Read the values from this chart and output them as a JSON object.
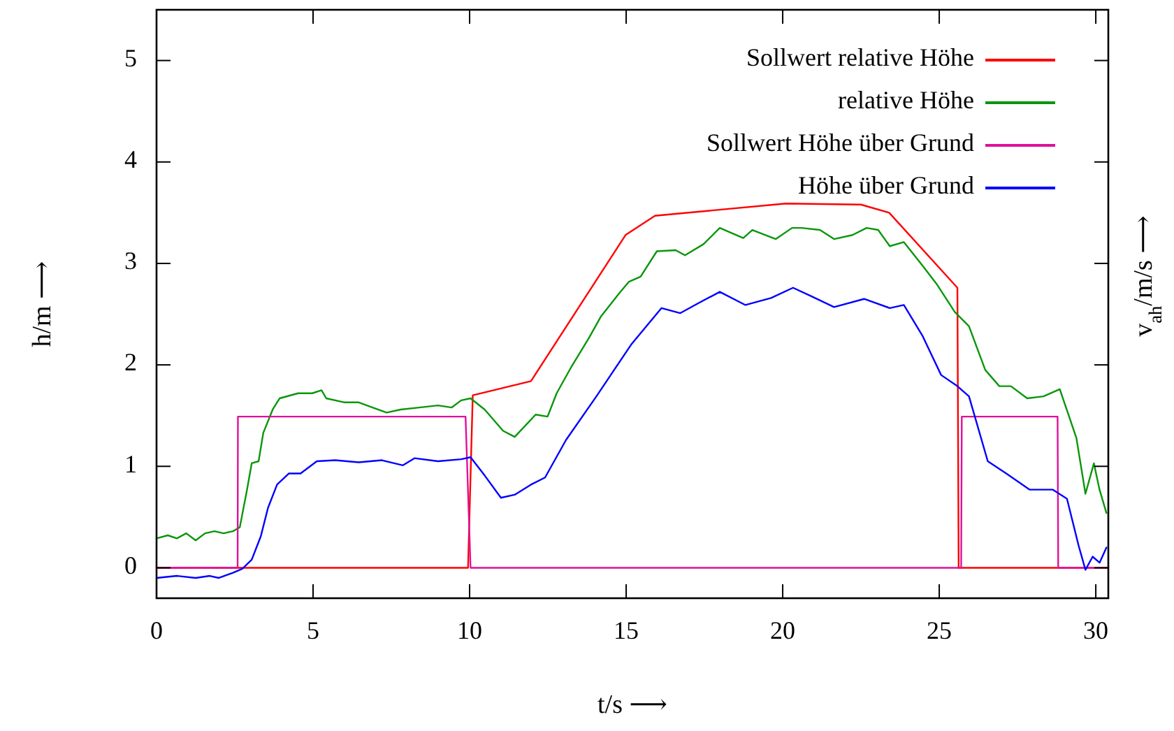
{
  "chart_data": {
    "type": "line",
    "xlabel": "t/s ⟶",
    "ylabel": "h/m ⟶",
    "y2label": "v$_{ah}$/m/s ⟶",
    "xlim": [
      0,
      30.4
    ],
    "xticks": [
      0,
      5,
      10,
      15,
      20,
      25,
      30
    ],
    "ylim": [
      -0.3,
      5.5
    ],
    "yticks": [
      0,
      1,
      2,
      3,
      4,
      5
    ],
    "grid": false,
    "legend": "top right",
    "line_style": "solid",
    "marker": "none",
    "series": [
      {
        "name": "Sollwert relative Höhe",
        "color": "#ff0000",
        "x": [
          0,
          9.95,
          10.1,
          11.96,
          14.98,
          15.92,
          20.1,
          22.5,
          23.4,
          25.58,
          25.62,
          30.4
        ],
        "values": [
          0,
          0,
          1.7,
          1.84,
          3.28,
          3.47,
          3.59,
          3.58,
          3.5,
          2.76,
          0,
          0
        ]
      },
      {
        "name": "relative Höhe",
        "color": "#0a960a",
        "x": [
          0,
          0.36,
          0.65,
          0.95,
          1.25,
          1.55,
          1.85,
          2.14,
          2.44,
          2.66,
          2.89,
          3.04,
          3.26,
          3.41,
          3.71,
          3.93,
          4.52,
          4.97,
          5.27,
          5.42,
          6.01,
          6.46,
          6.9,
          7.35,
          7.8,
          8.39,
          8.99,
          9.43,
          9.73,
          10.03,
          10.48,
          11.07,
          11.44,
          12.11,
          12.49,
          12.78,
          13.23,
          13.82,
          14.2,
          14.79,
          15.09,
          15.46,
          15.98,
          16.58,
          16.88,
          17.47,
          17.99,
          18.74,
          19.03,
          19.78,
          20.3,
          20.6,
          21.19,
          21.64,
          22.23,
          22.68,
          23.05,
          23.42,
          23.87,
          24.46,
          24.91,
          25.5,
          25.95,
          26.47,
          26.92,
          27.29,
          27.81,
          28.33,
          28.85,
          29.38,
          29.67,
          29.94,
          30.12,
          30.34
        ],
        "values": [
          0.29,
          0.32,
          0.29,
          0.34,
          0.27,
          0.34,
          0.36,
          0.34,
          0.36,
          0.4,
          0.77,
          1.03,
          1.05,
          1.33,
          1.56,
          1.67,
          1.72,
          1.72,
          1.75,
          1.67,
          1.63,
          1.63,
          1.58,
          1.53,
          1.56,
          1.58,
          1.6,
          1.58,
          1.65,
          1.67,
          1.56,
          1.35,
          1.29,
          1.51,
          1.49,
          1.72,
          1.97,
          2.27,
          2.48,
          2.71,
          2.82,
          2.87,
          3.12,
          3.13,
          3.08,
          3.19,
          3.35,
          3.25,
          3.33,
          3.24,
          3.35,
          3.35,
          3.33,
          3.24,
          3.28,
          3.35,
          3.33,
          3.17,
          3.21,
          2.98,
          2.8,
          2.52,
          2.38,
          1.95,
          1.79,
          1.79,
          1.67,
          1.69,
          1.76,
          1.28,
          0.73,
          1.03,
          0.77,
          0.54
        ]
      },
      {
        "name": "Sollwert Höhe über Grund",
        "color": "#e0109a",
        "x": [
          0,
          2.59,
          2.6,
          9.87,
          10.03,
          25.7,
          25.72,
          28.78,
          28.8,
          30.4
        ],
        "values": [
          0,
          0,
          1.49,
          1.49,
          0,
          0,
          1.49,
          1.49,
          0,
          0
        ]
      },
      {
        "name": "Höhe über Grund",
        "color": "#0000ff",
        "x": [
          0,
          0.65,
          1.25,
          1.7,
          1.99,
          2.44,
          2.74,
          3.04,
          3.33,
          3.56,
          3.85,
          4.23,
          4.6,
          5.12,
          5.71,
          6.46,
          7.2,
          7.87,
          8.24,
          8.99,
          9.73,
          10.03,
          10.48,
          11.0,
          11.44,
          11.96,
          12.41,
          13.08,
          14.05,
          15.16,
          16.13,
          16.73,
          17.32,
          17.99,
          18.81,
          19.63,
          20.33,
          20.89,
          21.64,
          22.6,
          23.42,
          23.87,
          24.46,
          25.06,
          25.58,
          25.95,
          26.55,
          27.14,
          27.89,
          28.63,
          29.08,
          29.45,
          29.67,
          29.9,
          30.12,
          30.34
        ],
        "values": [
          -0.1,
          -0.08,
          -0.1,
          -0.08,
          -0.1,
          -0.05,
          -0.01,
          0.08,
          0.31,
          0.59,
          0.82,
          0.93,
          0.93,
          1.05,
          1.06,
          1.04,
          1.06,
          1.01,
          1.08,
          1.05,
          1.07,
          1.09,
          0.91,
          0.69,
          0.72,
          0.82,
          0.89,
          1.26,
          1.69,
          2.2,
          2.56,
          2.51,
          2.61,
          2.72,
          2.59,
          2.66,
          2.76,
          2.68,
          2.57,
          2.65,
          2.56,
          2.59,
          2.29,
          1.9,
          1.79,
          1.69,
          1.05,
          0.93,
          0.77,
          0.77,
          0.68,
          0.22,
          -0.02,
          0.11,
          0.05,
          0.2
        ]
      }
    ]
  }
}
